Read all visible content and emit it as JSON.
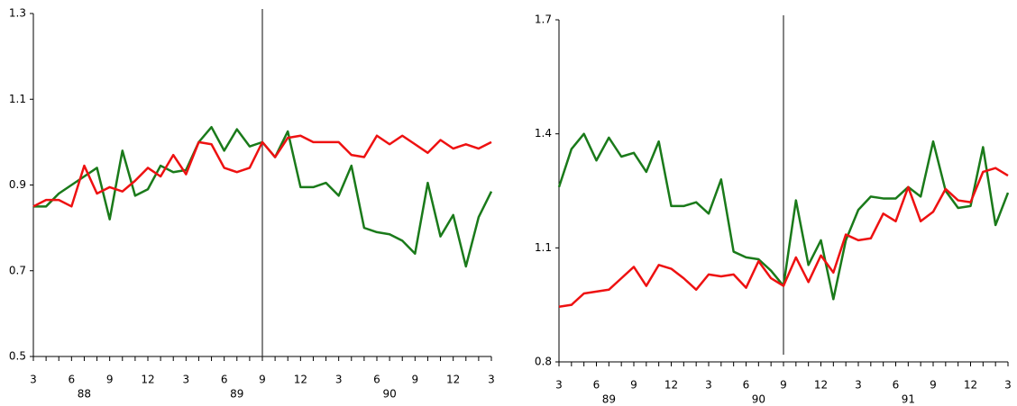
{
  "chart_data": [
    {
      "type": "line",
      "categories": [
        "3",
        null,
        null,
        "6",
        null,
        null,
        "9",
        null,
        null,
        "12",
        null,
        null,
        "3",
        null,
        null,
        "6",
        null,
        null,
        "9",
        null,
        null,
        "12",
        null,
        null,
        "3",
        null,
        null,
        "6",
        null,
        null,
        "9",
        null,
        null,
        "12",
        null,
        null,
        "3"
      ],
      "year_labels": [
        null,
        null,
        null,
        null,
        "88",
        null,
        null,
        null,
        null,
        null,
        null,
        null,
        null,
        null,
        null,
        null,
        "89",
        null,
        null,
        null,
        null,
        null,
        null,
        null,
        null,
        null,
        null,
        null,
        "90",
        null,
        null,
        null,
        null,
        null,
        null,
        null,
        null
      ],
      "marker_category": 18,
      "ylim": [
        0.5,
        1.3
      ],
      "yticks": [
        0.5,
        0.7,
        0.9,
        1.1,
        1.3
      ],
      "series": [
        {
          "color": "#1a7a1a",
          "values": [
            0.85,
            0.85,
            0.88,
            0.9,
            0.92,
            0.94,
            0.82,
            0.98,
            0.875,
            0.89,
            0.945,
            0.93,
            0.935,
            1.0,
            1.035,
            0.98,
            1.03,
            0.99,
            1.0,
            0.965,
            1.025,
            0.895,
            0.895,
            0.905,
            0.875,
            0.945,
            0.8,
            0.79,
            0.785,
            0.77,
            0.74,
            0.905,
            0.78,
            0.83,
            0.71,
            0.825,
            0.885
          ]
        },
        {
          "color": "#ee1111",
          "values": [
            0.85,
            0.865,
            0.865,
            0.85,
            0.945,
            0.88,
            0.895,
            0.885,
            0.91,
            0.94,
            0.92,
            0.97,
            0.925,
            1.0,
            0.995,
            0.94,
            0.93,
            0.94,
            1.0,
            0.965,
            1.01,
            1.015,
            1.0,
            1.0,
            1.0,
            0.97,
            0.965,
            1.015,
            0.995,
            1.015,
            0.995,
            0.975,
            1.005,
            0.985,
            0.995,
            0.985,
            1.0
          ]
        }
      ]
    },
    {
      "type": "line",
      "categories": [
        "3",
        null,
        null,
        "6",
        null,
        null,
        "9",
        null,
        null,
        "12",
        null,
        null,
        "3",
        null,
        null,
        "6",
        null,
        null,
        "9",
        null,
        null,
        "12",
        null,
        null,
        "3",
        null,
        null,
        "6",
        null,
        null,
        "9",
        null,
        null,
        "12",
        null,
        null,
        "3"
      ],
      "year_labels": [
        null,
        null,
        null,
        null,
        "89",
        null,
        null,
        null,
        null,
        null,
        null,
        null,
        null,
        null,
        null,
        null,
        "90",
        null,
        null,
        null,
        null,
        null,
        null,
        null,
        null,
        null,
        null,
        null,
        "91",
        null,
        null,
        null,
        null,
        null,
        null,
        null,
        null
      ],
      "marker_category": 18,
      "ylim": [
        0.8,
        1.7
      ],
      "yticks": [
        0.8,
        1.1,
        1.4,
        1.7
      ],
      "series": [
        {
          "color": "#1a7a1a",
          "values": [
            1.26,
            1.36,
            1.4,
            1.33,
            1.39,
            1.34,
            1.35,
            1.3,
            1.38,
            1.21,
            1.21,
            1.22,
            1.19,
            1.28,
            1.09,
            1.075,
            1.07,
            1.04,
            1.0,
            1.225,
            1.055,
            1.12,
            0.965,
            1.12,
            1.2,
            1.235,
            1.23,
            1.23,
            1.26,
            1.235,
            1.38,
            1.25,
            1.205,
            1.21,
            1.365,
            1.16,
            1.245
          ]
        },
        {
          "color": "#ee1111",
          "values": [
            0.945,
            0.95,
            0.98,
            0.985,
            0.99,
            1.02,
            1.05,
            1.0,
            1.055,
            1.045,
            1.02,
            0.99,
            1.03,
            1.025,
            1.03,
            0.995,
            1.065,
            1.02,
            1.0,
            1.075,
            1.01,
            1.08,
            1.035,
            1.135,
            1.12,
            1.125,
            1.19,
            1.17,
            1.26,
            1.17,
            1.195,
            1.255,
            1.225,
            1.22,
            1.3,
            1.31,
            1.29
          ]
        }
      ]
    }
  ]
}
